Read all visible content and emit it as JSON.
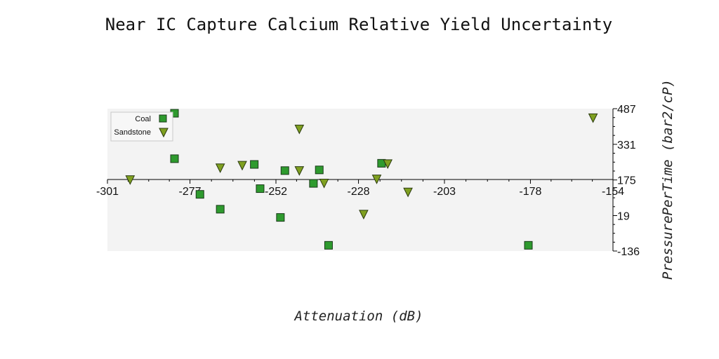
{
  "chart_data": {
    "type": "scatter",
    "title": "Near IC Capture Calcium Relative Yield Uncertainty",
    "xlabel": "Attenuation (dB)",
    "ylabel": "PressurePerTime (bar2/cP)",
    "xlim": [
      -301,
      -154
    ],
    "ylim": [
      -136,
      487
    ],
    "x_ticks": [
      -301,
      -277,
      -252,
      -228,
      -203,
      -178,
      -154
    ],
    "x_tick_labels": [
      "-301",
      "-277",
      "-252",
      "-228",
      "-203",
      "-178",
      "-154"
    ],
    "y_ticks": [
      -136,
      19,
      175,
      331,
      487
    ],
    "y_tick_labels": [
      "-136",
      "19",
      "175",
      "331",
      "487"
    ],
    "y_axis_position": "right",
    "grid": false,
    "legend_position": "top-left",
    "series": [
      {
        "name": "Coal",
        "marker": "square",
        "color": "#2e9a2e",
        "points": [
          {
            "x": -281.5,
            "y": 467
          },
          {
            "x": -281.5,
            "y": 268
          },
          {
            "x": -274.1,
            "y": 112
          },
          {
            "x": -268.2,
            "y": 47
          },
          {
            "x": -258.3,
            "y": 243
          },
          {
            "x": -256.6,
            "y": 137
          },
          {
            "x": -250.7,
            "y": 11
          },
          {
            "x": -249.4,
            "y": 216
          },
          {
            "x": -241.1,
            "y": 160
          },
          {
            "x": -239.4,
            "y": 219
          },
          {
            "x": -236.7,
            "y": -111
          },
          {
            "x": -221.3,
            "y": 248
          },
          {
            "x": -178.6,
            "y": -111
          }
        ]
      },
      {
        "name": "Sandstone",
        "marker": "triangle-down",
        "color": "#7fa020",
        "points": [
          {
            "x": -294.4,
            "y": 175
          },
          {
            "x": -268.2,
            "y": 227
          },
          {
            "x": -261.8,
            "y": 238
          },
          {
            "x": -245.2,
            "y": 397
          },
          {
            "x": -245.2,
            "y": 215
          },
          {
            "x": -238.0,
            "y": 160
          },
          {
            "x": -226.5,
            "y": 24
          },
          {
            "x": -222.7,
            "y": 178
          },
          {
            "x": -219.5,
            "y": 245
          },
          {
            "x": -213.6,
            "y": 121
          },
          {
            "x": -159.8,
            "y": 446
          }
        ]
      }
    ]
  }
}
